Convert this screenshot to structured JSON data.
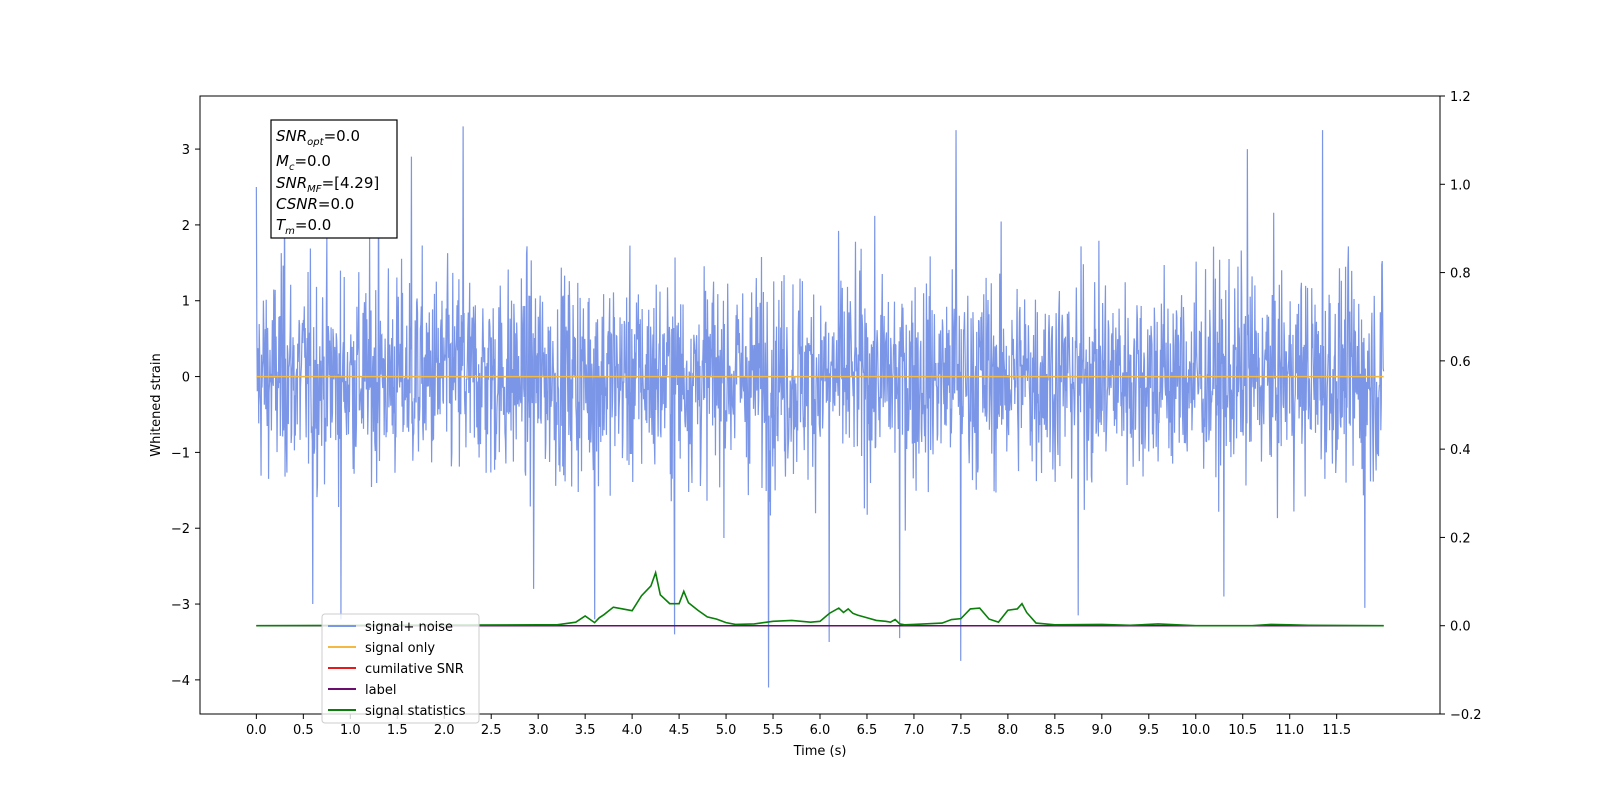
{
  "chart_data": {
    "type": "line",
    "xlabel": "Time (s)",
    "ylabel": "Whitened strain",
    "xlim": [
      -0.6,
      12.6
    ],
    "ylim": [
      -4.45,
      3.7
    ],
    "y2lim": [
      -0.2,
      1.2
    ],
    "x_ticks": [
      "0.0",
      "0.5",
      "1.0",
      "1.5",
      "2.0",
      "2.5",
      "3.0",
      "3.5",
      "4.0",
      "4.5",
      "5.0",
      "5.5",
      "6.0",
      "6.5",
      "7.0",
      "7.5",
      "8.0",
      "8.5",
      "9.0",
      "9.5",
      "10.0",
      "10.5",
      "11.0",
      "11.5"
    ],
    "y_ticks": [
      "3",
      "2",
      "1",
      "0",
      "−1",
      "−2",
      "−3",
      "−4"
    ],
    "y2_ticks": [
      "1.2",
      "1.0",
      "0.8",
      "0.6",
      "0.4",
      "0.2",
      "0.0",
      "−0.2"
    ],
    "grid": false,
    "legend_position": "lower-left",
    "series": [
      {
        "name": "signal+ noise",
        "color": "#7b96e6",
        "axis": "left",
        "x_range": [
          0.0,
          12.0
        ],
        "envelope_typical": [
          -1.5,
          1.6
        ],
        "peaks": [
          {
            "x": 0.0,
            "y": 2.5
          },
          {
            "x": 0.3,
            "y": 2.9
          },
          {
            "x": 0.6,
            "y": -3.0
          },
          {
            "x": 0.9,
            "y": -3.2
          },
          {
            "x": 1.3,
            "y": 3.0
          },
          {
            "x": 1.65,
            "y": 2.9
          },
          {
            "x": 2.2,
            "y": 3.3
          },
          {
            "x": 2.95,
            "y": -2.8
          },
          {
            "x": 3.6,
            "y": -3.2
          },
          {
            "x": 4.45,
            "y": -3.4
          },
          {
            "x": 5.45,
            "y": -4.1
          },
          {
            "x": 6.1,
            "y": -3.5
          },
          {
            "x": 6.85,
            "y": -3.45
          },
          {
            "x": 7.45,
            "y": 3.25
          },
          {
            "x": 7.5,
            "y": -3.75
          },
          {
            "x": 8.75,
            "y": -3.15
          },
          {
            "x": 10.3,
            "y": -2.9
          },
          {
            "x": 10.55,
            "y": 3.0
          },
          {
            "x": 11.35,
            "y": 3.25
          },
          {
            "x": 11.8,
            "y": -3.05
          }
        ]
      },
      {
        "name": "signal only",
        "color": "#f5b942",
        "axis": "left",
        "x": [
          0.0,
          12.0
        ],
        "y": [
          0.0,
          0.0
        ]
      },
      {
        "name": "cumilative SNR",
        "color": "#e41a1c",
        "axis": "right",
        "x": [
          0.0,
          12.0
        ],
        "y": [
          0.0,
          0.0
        ]
      },
      {
        "name": "label",
        "color": "#6a0d6e",
        "axis": "right",
        "x": [
          0.0,
          12.0
        ],
        "y": [
          0.0,
          0.0
        ]
      },
      {
        "name": "signal statistics",
        "color": "#0a7f0a",
        "axis": "right",
        "x": [
          0.0,
          3.0,
          3.2,
          3.4,
          3.5,
          3.6,
          3.65,
          3.7,
          3.8,
          3.9,
          4.0,
          4.1,
          4.2,
          4.25,
          4.3,
          4.4,
          4.5,
          4.55,
          4.6,
          4.7,
          4.8,
          4.9,
          5.0,
          5.1,
          5.3,
          5.5,
          5.7,
          5.9,
          6.0,
          6.1,
          6.2,
          6.25,
          6.3,
          6.35,
          6.4,
          6.5,
          6.6,
          6.7,
          6.75,
          6.8,
          6.85,
          6.9,
          7.0,
          7.3,
          7.4,
          7.5,
          7.6,
          7.7,
          7.8,
          7.9,
          8.0,
          8.1,
          8.15,
          8.2,
          8.3,
          8.5,
          9.0,
          9.3,
          9.6,
          10.0,
          10.6,
          10.8,
          11.0,
          11.2,
          12.0
        ],
        "y": [
          0.0,
          0.002,
          0.002,
          0.008,
          0.022,
          0.007,
          0.018,
          0.025,
          0.042,
          0.038,
          0.034,
          0.068,
          0.09,
          0.12,
          0.07,
          0.05,
          0.05,
          0.078,
          0.052,
          0.035,
          0.02,
          0.015,
          0.007,
          0.003,
          0.004,
          0.01,
          0.012,
          0.008,
          0.01,
          0.028,
          0.04,
          0.03,
          0.038,
          0.028,
          0.024,
          0.018,
          0.012,
          0.01,
          0.008,
          0.014,
          0.004,
          0.002,
          0.003,
          0.006,
          0.014,
          0.016,
          0.038,
          0.04,
          0.015,
          0.008,
          0.035,
          0.038,
          0.05,
          0.03,
          0.006,
          0.002,
          0.003,
          0.001,
          0.004,
          0.0,
          0.0,
          0.003,
          0.002,
          0.001,
          0.0
        ]
      }
    ]
  },
  "annotation": {
    "snr_opt_label": "SNR",
    "snr_opt_sub": "opt",
    "snr_opt_value": "=0.0",
    "mc_label": "M",
    "mc_sub": "c",
    "mc_value": "=0.0",
    "snr_mf_label": "SNR",
    "snr_mf_sub": "MF",
    "snr_mf_value": "=[4.29]",
    "csnr_label": "CSNR",
    "csnr_value": "=0.0",
    "tm_label": "T",
    "tm_sub": "m",
    "tm_value": "=0.0"
  }
}
